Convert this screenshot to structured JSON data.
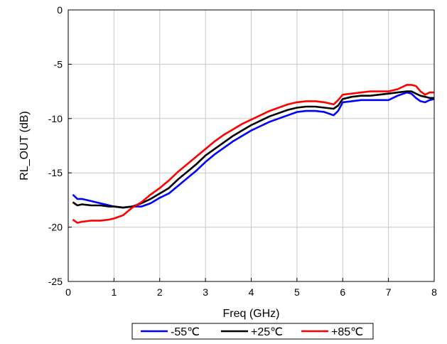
{
  "chart_data": {
    "type": "line",
    "xlabel": "Freq (GHz)",
    "ylabel": "RL_OUT (dB)",
    "xlim": [
      0,
      8
    ],
    "ylim": [
      -25,
      0
    ],
    "xticks": [
      0,
      1,
      2,
      3,
      4,
      5,
      6,
      7,
      8
    ],
    "yticks": [
      0,
      -5,
      -10,
      -15,
      -20,
      -25
    ],
    "grid": true,
    "legend_position": "bottom",
    "series": [
      {
        "name": "-55℃",
        "color": "#0000ff",
        "x": [
          0.1,
          0.2,
          0.3,
          0.5,
          0.7,
          0.9,
          1.0,
          1.2,
          1.4,
          1.6,
          1.8,
          2.0,
          2.2,
          2.4,
          2.6,
          2.8,
          3.0,
          3.2,
          3.4,
          3.6,
          3.8,
          4.0,
          4.2,
          4.4,
          4.6,
          4.8,
          5.0,
          5.2,
          5.4,
          5.6,
          5.8,
          5.9,
          6.0,
          6.2,
          6.4,
          6.6,
          6.8,
          7.0,
          7.2,
          7.4,
          7.5,
          7.6,
          7.7,
          7.8,
          7.9,
          8.0
        ],
        "y": [
          -17.0,
          -17.4,
          -17.4,
          -17.6,
          -17.8,
          -18.0,
          -18.1,
          -18.2,
          -18.1,
          -18.1,
          -17.8,
          -17.3,
          -16.9,
          -16.2,
          -15.5,
          -14.8,
          -14.0,
          -13.3,
          -12.7,
          -12.1,
          -11.6,
          -11.1,
          -10.7,
          -10.3,
          -10.0,
          -9.7,
          -9.4,
          -9.3,
          -9.3,
          -9.4,
          -9.7,
          -9.3,
          -8.5,
          -8.4,
          -8.3,
          -8.3,
          -8.3,
          -8.3,
          -7.9,
          -7.6,
          -7.7,
          -8.1,
          -8.4,
          -8.5,
          -8.3,
          -8.2
        ]
      },
      {
        "name": "+25℃",
        "color": "#000000",
        "x": [
          0.1,
          0.2,
          0.3,
          0.5,
          0.7,
          0.9,
          1.0,
          1.2,
          1.4,
          1.6,
          1.8,
          2.0,
          2.2,
          2.4,
          2.6,
          2.8,
          3.0,
          3.2,
          3.4,
          3.6,
          3.8,
          4.0,
          4.2,
          4.4,
          4.6,
          4.8,
          5.0,
          5.2,
          5.4,
          5.6,
          5.8,
          5.9,
          6.0,
          6.2,
          6.4,
          6.6,
          6.8,
          7.0,
          7.2,
          7.4,
          7.5,
          7.6,
          7.7,
          7.8,
          7.9,
          8.0
        ],
        "y": [
          -17.7,
          -18.0,
          -17.9,
          -18.0,
          -18.0,
          -18.1,
          -18.1,
          -18.2,
          -18.1,
          -17.8,
          -17.4,
          -16.9,
          -16.4,
          -15.6,
          -14.9,
          -14.2,
          -13.4,
          -12.8,
          -12.2,
          -11.6,
          -11.1,
          -10.6,
          -10.2,
          -9.8,
          -9.5,
          -9.2,
          -9.0,
          -8.9,
          -8.9,
          -9.0,
          -9.1,
          -8.8,
          -8.2,
          -8.0,
          -7.9,
          -7.9,
          -7.8,
          -7.7,
          -7.6,
          -7.5,
          -7.5,
          -7.7,
          -7.9,
          -8.0,
          -8.1,
          -8.1
        ]
      },
      {
        "name": "+85℃",
        "color": "#ff0000",
        "x": [
          0.1,
          0.2,
          0.3,
          0.5,
          0.7,
          0.9,
          1.0,
          1.2,
          1.4,
          1.6,
          1.8,
          2.0,
          2.2,
          2.4,
          2.6,
          2.8,
          3.0,
          3.2,
          3.4,
          3.6,
          3.8,
          4.0,
          4.2,
          4.4,
          4.6,
          4.8,
          5.0,
          5.2,
          5.4,
          5.6,
          5.8,
          5.9,
          6.0,
          6.2,
          6.4,
          6.6,
          6.8,
          7.0,
          7.2,
          7.4,
          7.5,
          7.6,
          7.7,
          7.8,
          7.9,
          8.0
        ],
        "y": [
          -19.3,
          -19.6,
          -19.5,
          -19.4,
          -19.4,
          -19.3,
          -19.2,
          -18.9,
          -18.2,
          -17.7,
          -17.0,
          -16.4,
          -15.7,
          -14.9,
          -14.2,
          -13.5,
          -12.8,
          -12.1,
          -11.5,
          -11.0,
          -10.5,
          -10.1,
          -9.7,
          -9.3,
          -9.0,
          -8.7,
          -8.5,
          -8.4,
          -8.4,
          -8.5,
          -8.7,
          -8.3,
          -7.8,
          -7.7,
          -7.6,
          -7.5,
          -7.5,
          -7.5,
          -7.3,
          -6.9,
          -6.9,
          -7.0,
          -7.5,
          -7.8,
          -7.6,
          -7.6
        ]
      }
    ]
  }
}
